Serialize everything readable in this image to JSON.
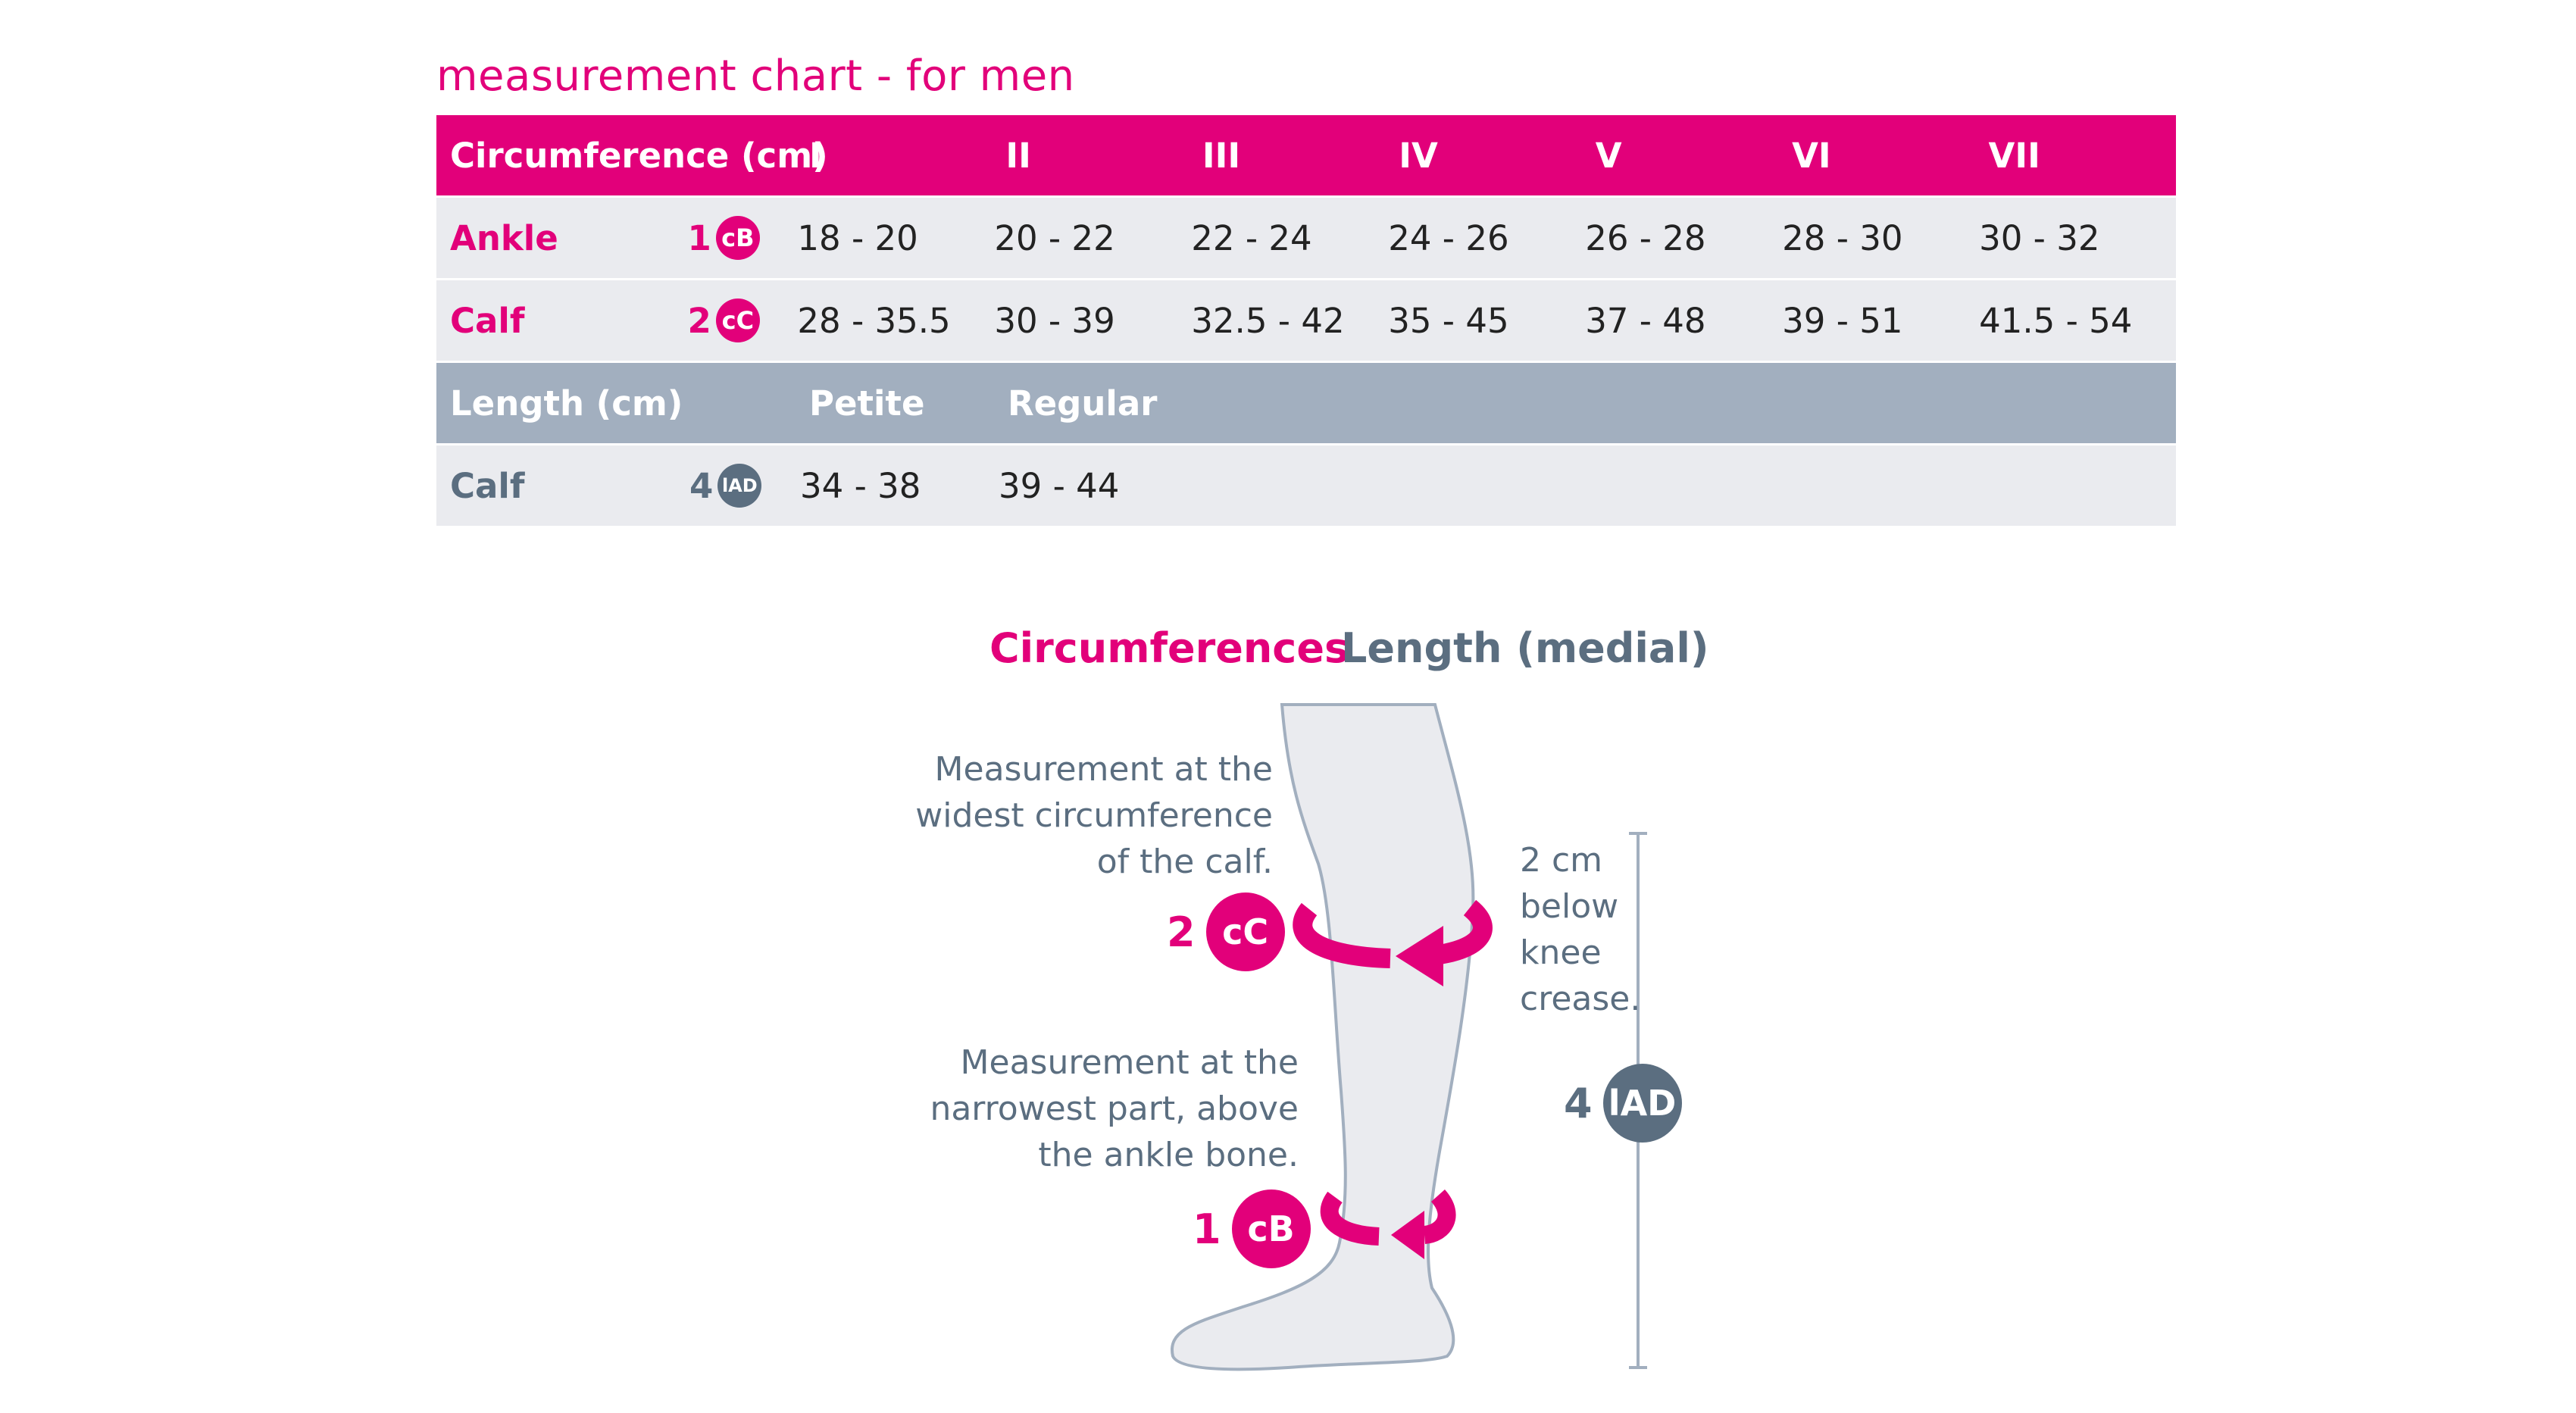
{
  "title": "measurement chart - for men",
  "colors": {
    "accent": "#e2007a",
    "slate": "#5b6e80",
    "gray_header": "#a2afbf",
    "row_bg": "#eaebef"
  },
  "circumference_table": {
    "header": "Circumference (cm)",
    "sizes": [
      "I",
      "II",
      "III",
      "IV",
      "V",
      "VI",
      "VII"
    ],
    "rows": [
      {
        "label": "Ankle",
        "num": "1",
        "badge": "cB",
        "values": [
          "18 - 20",
          "20 - 22",
          "22 - 24",
          "24 - 26",
          "26 - 28",
          "28 - 30",
          "30 - 32"
        ]
      },
      {
        "label": "Calf",
        "num": "2",
        "badge": "cC",
        "values": [
          "28 - 35.5",
          "30 - 39",
          "32.5 - 42",
          "35 - 45",
          "37 - 48",
          "39 - 51",
          "41.5 - 54"
        ]
      }
    ]
  },
  "length_table": {
    "header": "Length (cm)",
    "sizes": [
      "Petite",
      "Regular"
    ],
    "rows": [
      {
        "label": "Calf",
        "num": "4",
        "badge": "lAD",
        "values": [
          "34 - 38",
          "39 - 44"
        ]
      }
    ]
  },
  "diagram": {
    "heading_circumferences": "Circumferences",
    "heading_length": "Length (medial)",
    "calf_note": [
      "Measurement at the",
      "widest circumference",
      "of the calf."
    ],
    "ankle_note": [
      "Measurement at the",
      "narrowest part, above",
      "the ankle bone."
    ],
    "knee_note": [
      "2 cm",
      "below",
      "knee",
      "crease."
    ],
    "calf_marker": {
      "num": "2",
      "badge": "cC"
    },
    "ankle_marker": {
      "num": "1",
      "badge": "cB"
    },
    "length_marker": {
      "num": "4",
      "badge": "lAD"
    }
  }
}
